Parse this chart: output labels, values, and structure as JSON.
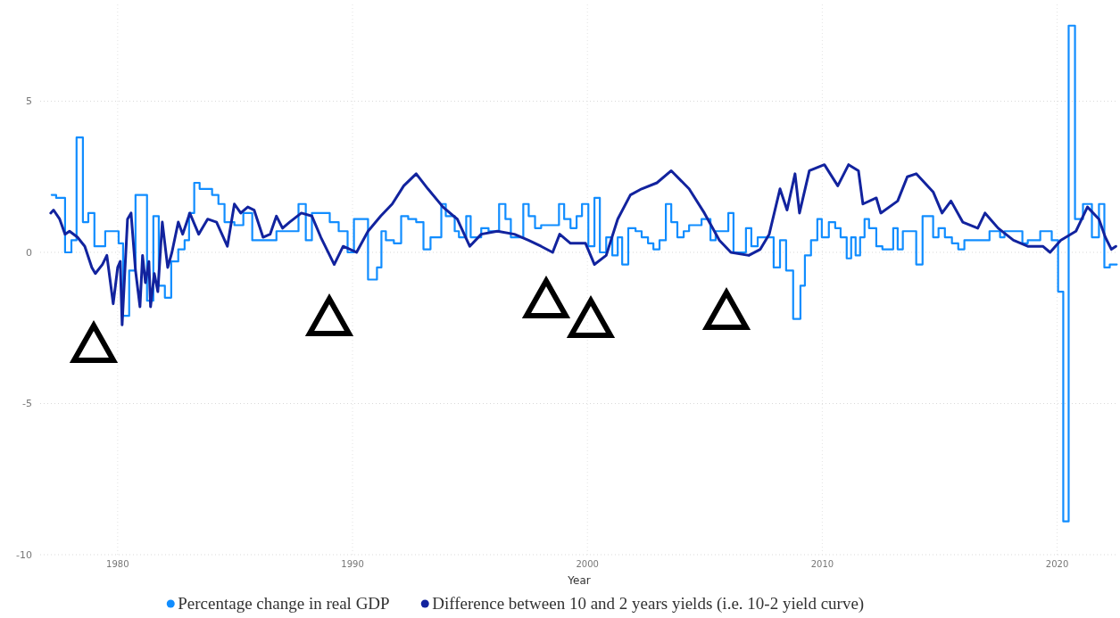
{
  "chart_data": {
    "type": "line",
    "xlabel": "Year",
    "xlim": [
      1976.7,
      2022.6
    ],
    "ylim": [
      -10,
      8.2
    ],
    "xticks": [
      1980,
      1990,
      2000,
      2010,
      2020
    ],
    "yticks": [
      -10,
      -5,
      0,
      5
    ],
    "grid": true,
    "legend": "bottom",
    "line_style": "solid",
    "marker": "none",
    "series": [
      {
        "name": "Percentage change in real GDP",
        "type": "step",
        "color": "#118dff",
        "x": [
          1977.19,
          1977.38,
          1977.76,
          1978.03,
          1978.25,
          1978.52,
          1978.75,
          1979.01,
          1979.47,
          1980.04,
          1980.23,
          1980.49,
          1980.76,
          1981.25,
          1981.52,
          1981.75,
          1982.01,
          1982.28,
          1982.58,
          1982.85,
          1983.04,
          1983.26,
          1983.49,
          1984.02,
          1984.29,
          1984.55,
          1984.97,
          1985.35,
          1985.73,
          1986.76,
          1987.7,
          1988.01,
          1988.27,
          1989.03,
          1989.41,
          1989.79,
          1990.06,
          1990.66,
          1991.04,
          1991.23,
          1991.42,
          1991.76,
          1992.07,
          1992.37,
          1992.71,
          1993.02,
          1993.32,
          1993.78,
          1993.97,
          1994.35,
          1994.53,
          1994.84,
          1995.03,
          1995.48,
          1995.79,
          1996.24,
          1996.51,
          1996.74,
          1997.27,
          1997.5,
          1997.77,
          1998.03,
          1998.79,
          1999.01,
          1999.28,
          1999.54,
          1999.77,
          2000.04,
          2000.3,
          2000.53,
          2000.8,
          2001.06,
          2001.29,
          2001.48,
          2001.74,
          2002.05,
          2002.31,
          2002.58,
          2002.81,
          2003.07,
          2003.34,
          2003.57,
          2003.83,
          2004.1,
          2004.33,
          2004.86,
          2005.24,
          2005.46,
          2006.0,
          2006.22,
          2006.75,
          2006.98,
          2007.25,
          2007.93,
          2008.2,
          2008.46,
          2008.76,
          2009.07,
          2009.26,
          2009.52,
          2009.79,
          2009.98,
          2010.28,
          2010.55,
          2010.78,
          2011.04,
          2011.23,
          2011.42,
          2011.61,
          2011.8,
          2011.99,
          2012.3,
          2012.56,
          2013.02,
          2013.21,
          2013.43,
          2014.0,
          2014.27,
          2014.72,
          2014.95,
          2015.22,
          2015.52,
          2015.79,
          2016.05,
          2017.12,
          2017.57,
          2017.76,
          2018.52,
          2018.75,
          2019.28,
          2019.77,
          2020.04,
          2020.26,
          2020.49,
          2020.76,
          2021.1,
          2021.48,
          2021.78,
          2022.01,
          2022.24,
          2022.54
        ],
        "values": [
          1.9,
          1.8,
          0,
          0.4,
          3.8,
          1.0,
          1.3,
          0.2,
          0.7,
          0.3,
          -2.1,
          -0.6,
          1.9,
          -1.6,
          1.2,
          -1.1,
          -1.5,
          -0.3,
          0.1,
          0.4,
          1.3,
          2.3,
          2.1,
          1.9,
          1.6,
          1.0,
          0.9,
          1.3,
          0.4,
          0.7,
          1.6,
          0.4,
          1.3,
          1.0,
          0.7,
          0,
          1.1,
          -0.9,
          -0.5,
          0.7,
          0.4,
          0.3,
          1.2,
          1.1,
          1.0,
          0.1,
          0.5,
          1.6,
          1.2,
          0.7,
          0.5,
          1.2,
          0.5,
          0.8,
          0.7,
          1.6,
          1.1,
          0.5,
          1.6,
          1.2,
          0.8,
          0.9,
          1.6,
          1.1,
          0.8,
          1.2,
          1.6,
          0.2,
          1.8,
          0,
          0.5,
          -0.1,
          0.5,
          -0.4,
          0.8,
          0.7,
          0.5,
          0.3,
          0.1,
          0.4,
          1.6,
          1.0,
          0.5,
          0.7,
          0.9,
          1.1,
          0.4,
          0.7,
          1.3,
          0,
          0.8,
          0.2,
          0.5,
          -0.5,
          0.4,
          -0.6,
          -2.2,
          -1.1,
          -0.1,
          0.4,
          1.1,
          0.5,
          1.0,
          0.8,
          0.5,
          -0.2,
          0.5,
          -0.1,
          0.5,
          1.1,
          0.8,
          0.2,
          0.1,
          0.8,
          0.1,
          0.7,
          -0.4,
          1.2,
          0.5,
          0.8,
          0.5,
          0.3,
          0.1,
          0.4,
          0.7,
          0.5,
          0.7,
          0.3,
          0.4,
          0.7,
          0.4,
          -1.3,
          -8.9,
          7.5,
          1.1,
          1.6,
          0.5,
          1.6,
          -0.5,
          -0.4,
          -0.4
        ]
      },
      {
        "name": "Difference between 10 and 2 years yields (i.e. 10-2 yield curve)",
        "color": "#12239e",
        "x": [
          1977.15,
          1977.27,
          1977.53,
          1977.76,
          1977.95,
          1978.29,
          1978.6,
          1978.9,
          1979.05,
          1979.35,
          1979.54,
          1979.81,
          1980.0,
          1980.11,
          1980.19,
          1980.42,
          1980.57,
          1980.76,
          1980.95,
          1981.06,
          1981.18,
          1981.33,
          1981.4,
          1981.56,
          1981.71,
          1981.9,
          1982.13,
          1982.31,
          1982.58,
          1982.77,
          1983.07,
          1983.45,
          1983.83,
          1984.21,
          1984.67,
          1984.97,
          1985.24,
          1985.54,
          1985.81,
          1986.19,
          1986.49,
          1986.76,
          1987.02,
          1987.32,
          1987.82,
          1988.27,
          1988.65,
          1989.22,
          1989.6,
          1990.17,
          1990.66,
          1991.2,
          1991.69,
          1992.18,
          1992.71,
          1993.21,
          1993.85,
          1994.46,
          1994.99,
          1995.48,
          1996.17,
          1996.89,
          1997.49,
          1998.03,
          1998.52,
          1998.82,
          1999.28,
          1999.92,
          2000.3,
          2000.8,
          2001.29,
          2001.83,
          2002.31,
          2002.96,
          2003.57,
          2004.33,
          2004.98,
          2005.62,
          2006.11,
          2006.87,
          2007.36,
          2007.74,
          2008.2,
          2008.5,
          2008.84,
          2009.03,
          2009.45,
          2010.09,
          2010.66,
          2011.12,
          2011.54,
          2011.73,
          2012.3,
          2012.49,
          2013.21,
          2013.62,
          2014.0,
          2014.72,
          2015.1,
          2015.48,
          2015.98,
          2016.62,
          2016.93,
          2017.49,
          2018.14,
          2018.75,
          2019.39,
          2019.7,
          2020.15,
          2020.8,
          2021.29,
          2021.78,
          2022.05,
          2022.31,
          2022.5
        ],
        "values": [
          1.3,
          1.4,
          1.1,
          0.6,
          0.7,
          0.5,
          0.2,
          -0.5,
          -0.7,
          -0.4,
          -0.1,
          -1.7,
          -0.5,
          -0.3,
          -2.4,
          1.1,
          1.3,
          -0.6,
          -1.8,
          -0.1,
          -1.0,
          -0.3,
          -1.8,
          -0.7,
          -1.3,
          1.0,
          -0.5,
          0,
          1.0,
          0.6,
          1.3,
          0.6,
          1.1,
          1.0,
          0.2,
          1.6,
          1.3,
          1.5,
          1.4,
          0.5,
          0.6,
          1.2,
          0.8,
          1.0,
          1.3,
          1.2,
          0.5,
          -0.4,
          0.2,
          0.0,
          0.7,
          1.2,
          1.6,
          2.2,
          2.6,
          2.1,
          1.5,
          1.1,
          0.2,
          0.6,
          0.7,
          0.6,
          0.4,
          0.2,
          0.0,
          0.6,
          0.3,
          0.3,
          -0.4,
          -0.1,
          1.1,
          1.9,
          2.1,
          2.3,
          2.7,
          2.1,
          1.3,
          0.4,
          0.0,
          -0.1,
          0.1,
          0.6,
          2.1,
          1.4,
          2.6,
          1.3,
          2.7,
          2.9,
          2.2,
          2.9,
          2.7,
          1.6,
          1.8,
          1.3,
          1.7,
          2.5,
          2.6,
          2.0,
          1.3,
          1.7,
          1.0,
          0.8,
          1.3,
          0.8,
          0.4,
          0.2,
          0.2,
          0.0,
          0.4,
          0.7,
          1.5,
          1.1,
          0.5,
          0.1,
          0.2
        ]
      }
    ]
  }
}
